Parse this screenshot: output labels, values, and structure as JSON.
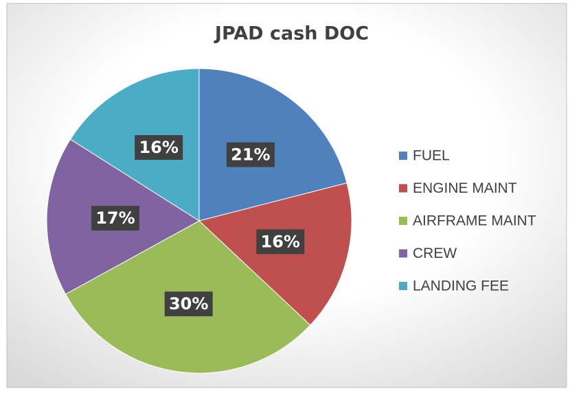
{
  "chart_data": {
    "type": "pie",
    "title": "JPAD cash DOC",
    "categories": [
      "FUEL",
      "ENGINE MAINT",
      "AIRFRAME MAINT",
      "CREW",
      "LANDING FEE"
    ],
    "values": [
      21,
      16,
      30,
      17,
      16
    ],
    "value_labels": [
      "21%",
      "16%",
      "30%",
      "17%",
      "16%"
    ],
    "colors": [
      "#4f81bd",
      "#c0504d",
      "#9bbb59",
      "#8064a2",
      "#4bacc6"
    ],
    "legend": "right"
  }
}
